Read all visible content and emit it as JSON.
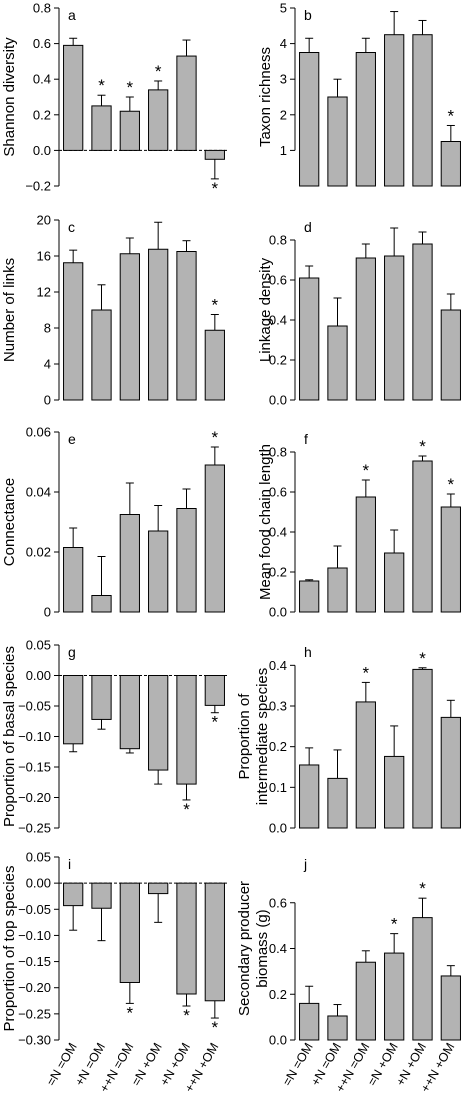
{
  "colors": {
    "bar_fill": "#b3b3b3",
    "stroke": "#000000",
    "background": "#ffffff"
  },
  "categories": [
    "=N =OM",
    "+N =OM",
    "++N =OM",
    "=N +OM",
    "+N +OM",
    "++N +OM"
  ],
  "chart_data": [
    {
      "id": "a",
      "type": "bar",
      "letter": "a",
      "ylabel": [
        "Shannon diversity"
      ],
      "ylim": [
        -0.2,
        0.8
      ],
      "ticks": [
        -0.2,
        0,
        0.2,
        0.4,
        0.6,
        0.8
      ],
      "tick_labels": [
        "−0.2",
        "0.0",
        "0.2",
        "0.4",
        "0.6",
        "0.8"
      ],
      "values": [
        0.59,
        0.25,
        0.22,
        0.34,
        0.53,
        -0.05
      ],
      "errors": [
        0.04,
        0.06,
        0.08,
        0.05,
        0.09,
        0.11
      ],
      "significant": [
        false,
        true,
        true,
        true,
        false,
        true
      ]
    },
    {
      "id": "b",
      "type": "bar",
      "letter": "b",
      "ylabel": [
        "Taxon richness"
      ],
      "ylim": [
        0,
        5
      ],
      "ticks": [
        1,
        2,
        3,
        4,
        5
      ],
      "tick_labels": [
        "1",
        "2",
        "3",
        "4",
        "5"
      ],
      "values": [
        3.75,
        2.5,
        3.75,
        4.25,
        4.25,
        1.25
      ],
      "errors": [
        0.4,
        0.5,
        0.4,
        0.65,
        0.4,
        0.45
      ],
      "significant": [
        false,
        false,
        false,
        false,
        false,
        true
      ]
    },
    {
      "id": "c",
      "type": "bar",
      "letter": "c",
      "ylabel": [
        "Number of links"
      ],
      "ylim": [
        0,
        20
      ],
      "ticks": [
        0,
        4,
        8,
        12,
        16,
        20
      ],
      "tick_labels": [
        "0",
        "4",
        "8",
        "12",
        "16",
        "20"
      ],
      "values": [
        15.25,
        10,
        16.25,
        16.75,
        16.5,
        7.75
      ],
      "errors": [
        1.4,
        2.8,
        1.75,
        3.0,
        1.2,
        1.75
      ],
      "significant": [
        false,
        false,
        false,
        false,
        false,
        true
      ]
    },
    {
      "id": "d",
      "type": "bar",
      "letter": "d",
      "ylabel": [
        "Linkage density"
      ],
      "ylim": [
        0,
        0.9
      ],
      "ticks": [
        0,
        0.2,
        0.4,
        0.6,
        0.8
      ],
      "tick_labels": [
        "0.0",
        "0.2",
        "0.4",
        "0.6",
        "0.8"
      ],
      "values": [
        0.61,
        0.37,
        0.71,
        0.72,
        0.78,
        0.45
      ],
      "errors": [
        0.06,
        0.14,
        0.07,
        0.14,
        0.06,
        0.08
      ],
      "significant": [
        false,
        false,
        false,
        false,
        false,
        false
      ]
    },
    {
      "id": "e",
      "type": "bar",
      "letter": "e",
      "ylabel": [
        "Connectance"
      ],
      "ylim": [
        0,
        0.06
      ],
      "ticks": [
        0,
        0.02,
        0.04,
        0.06
      ],
      "tick_labels": [
        "0",
        "0.02",
        "0.04",
        "0.06"
      ],
      "values": [
        0.0215,
        0.0055,
        0.0325,
        0.027,
        0.0345,
        0.049
      ],
      "errors": [
        0.0065,
        0.013,
        0.0105,
        0.0085,
        0.0065,
        0.006
      ],
      "significant": [
        false,
        false,
        false,
        false,
        false,
        true
      ]
    },
    {
      "id": "f",
      "type": "bar",
      "letter": "f",
      "ylabel": [
        "Mean food chain length"
      ],
      "ylim": [
        0,
        0.9
      ],
      "ticks": [
        0,
        0.2,
        0.4,
        0.6,
        0.8
      ],
      "tick_labels": [
        "0.0",
        "0.2",
        "0.4",
        "0.6",
        "0.8"
      ],
      "values": [
        0.155,
        0.22,
        0.575,
        0.295,
        0.755,
        0.525
      ],
      "errors": [
        0.006,
        0.11,
        0.085,
        0.115,
        0.025,
        0.065
      ],
      "significant": [
        false,
        false,
        true,
        false,
        true,
        true
      ]
    },
    {
      "id": "g",
      "type": "bar",
      "letter": "g",
      "ylabel": [
        "Proportion of basal species"
      ],
      "ylim": [
        -0.25,
        0.05
      ],
      "ticks": [
        -0.25,
        -0.2,
        -0.15,
        -0.1,
        -0.05,
        0,
        0.05
      ],
      "tick_labels": [
        "−0.25",
        "−0.20",
        "−0.15",
        "−0.10",
        "−0.05",
        "0.00",
        "0.05"
      ],
      "values": [
        -0.112,
        -0.072,
        -0.12,
        -0.155,
        -0.178,
        -0.049
      ],
      "errors": [
        0.013,
        0.016,
        0.007,
        0.023,
        0.026,
        0.012
      ],
      "significant": [
        false,
        false,
        false,
        false,
        true,
        true
      ]
    },
    {
      "id": "h",
      "type": "bar",
      "letter": "h",
      "ylabel": [
        "Proportion of",
        "intermediate species"
      ],
      "ylim": [
        0,
        0.45
      ],
      "ticks": [
        0,
        0.1,
        0.2,
        0.3,
        0.4
      ],
      "tick_labels": [
        "0.0",
        "0.1",
        "0.2",
        "0.3",
        "0.4"
      ],
      "values": [
        0.155,
        0.122,
        0.31,
        0.176,
        0.39,
        0.272
      ],
      "errors": [
        0.042,
        0.07,
        0.048,
        0.075,
        0.004,
        0.042
      ],
      "significant": [
        false,
        false,
        true,
        false,
        true,
        false
      ]
    },
    {
      "id": "i",
      "type": "bar",
      "letter": "i",
      "ylabel": [
        "Proportion of top species"
      ],
      "ylim": [
        -0.3,
        0.05
      ],
      "ticks": [
        -0.3,
        -0.25,
        -0.2,
        -0.15,
        -0.1,
        -0.05,
        0,
        0.05
      ],
      "tick_labels": [
        "−0.30",
        "−0.25",
        "−0.20",
        "−0.15",
        "−0.10",
        "−0.05",
        "0.00",
        "0.05"
      ],
      "values": [
        -0.043,
        -0.048,
        -0.19,
        -0.02,
        -0.212,
        -0.225
      ],
      "errors": [
        0.047,
        0.062,
        0.04,
        0.055,
        0.023,
        0.033
      ],
      "significant": [
        false,
        false,
        true,
        false,
        true,
        true
      ]
    },
    {
      "id": "j",
      "type": "bar",
      "letter": "j",
      "ylabel": [
        "Secondary producer",
        "biomass (g)"
      ],
      "ylim": [
        0,
        0.8
      ],
      "ticks": [
        0,
        0.2,
        0.4,
        0.6
      ],
      "tick_labels": [
        "0.0",
        "0.2",
        "0.4",
        "0.6"
      ],
      "values": [
        0.16,
        0.105,
        0.34,
        0.38,
        0.535,
        0.28
      ],
      "errors": [
        0.075,
        0.05,
        0.05,
        0.085,
        0.085,
        0.045
      ],
      "significant": [
        false,
        false,
        false,
        true,
        true,
        false
      ]
    }
  ]
}
